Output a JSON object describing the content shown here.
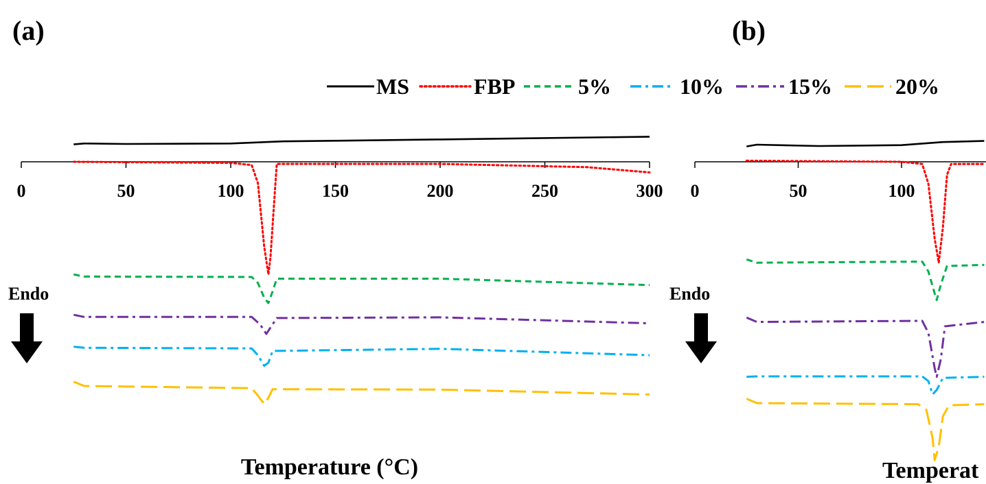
{
  "legend": {
    "entries": [
      {
        "key": "MS",
        "label": "MS"
      },
      {
        "key": "FBP",
        "label": "FBP"
      },
      {
        "key": "p5",
        "label": "5%"
      },
      {
        "key": "p10",
        "label": "10%"
      },
      {
        "key": "p15",
        "label": "15%"
      },
      {
        "key": "p20",
        "label": "20%"
      }
    ]
  },
  "chart_data": [
    {
      "type": "line",
      "panel_label": "(a)",
      "xlabel": "Temperature (°C)",
      "ylabel": "",
      "side_label": "Endo",
      "xlim": [
        0,
        300
      ],
      "x_ticks": [
        0,
        50,
        100,
        150,
        200,
        250,
        300
      ],
      "grid": false,
      "series": [
        {
          "name": "MS",
          "color": "#000000",
          "dash": "solid",
          "points": [
            [
              25,
              0.82
            ],
            [
              30,
              0.86
            ],
            [
              50,
              0.84
            ],
            [
              100,
              0.86
            ],
            [
              125,
              0.96
            ],
            [
              200,
              1.05
            ],
            [
              300,
              1.18
            ]
          ]
        },
        {
          "name": "FBP",
          "color": "#ff0000",
          "dash": "dotted",
          "points": [
            [
              25,
              0.0
            ],
            [
              100,
              -0.05
            ],
            [
              110,
              -0.15
            ],
            [
              113,
              -1.0
            ],
            [
              116,
              -4.0
            ],
            [
              118,
              -5.3
            ],
            [
              119,
              -4.5
            ],
            [
              121,
              -1.5
            ],
            [
              122,
              -0.1
            ],
            [
              200,
              -0.1
            ],
            [
              270,
              -0.25
            ],
            [
              300,
              -0.5
            ]
          ]
        },
        {
          "name": "5%",
          "color": "#00b050",
          "dash": "dashed",
          "points": [
            [
              25,
              -5.3
            ],
            [
              30,
              -5.4
            ],
            [
              110,
              -5.42
            ],
            [
              113,
              -5.7
            ],
            [
              116,
              -6.4
            ],
            [
              118,
              -6.65
            ],
            [
              120,
              -6.1
            ],
            [
              122,
              -5.5
            ],
            [
              200,
              -5.5
            ],
            [
              300,
              -5.8
            ]
          ]
        },
        {
          "name": "15%",
          "color": "#7030a0",
          "dash": "dashdot",
          "points": [
            [
              25,
              -7.2
            ],
            [
              30,
              -7.3
            ],
            [
              110,
              -7.3
            ],
            [
              114,
              -7.65
            ],
            [
              117,
              -8.1
            ],
            [
              119,
              -7.8
            ],
            [
              122,
              -7.35
            ],
            [
              200,
              -7.32
            ],
            [
              300,
              -7.6
            ]
          ]
        },
        {
          "name": "10%",
          "color": "#00b0f0",
          "dash": "dashdot",
          "points": [
            [
              25,
              -8.7
            ],
            [
              30,
              -8.75
            ],
            [
              110,
              -8.78
            ],
            [
              113,
              -9.1
            ],
            [
              116,
              -9.6
            ],
            [
              118,
              -9.45
            ],
            [
              120,
              -8.9
            ],
            [
              200,
              -8.8
            ],
            [
              300,
              -9.1
            ]
          ]
        },
        {
          "name": "20%",
          "color": "#ffc000",
          "dash": "longdash",
          "points": [
            [
              25,
              -10.35
            ],
            [
              30,
              -10.55
            ],
            [
              110,
              -10.65
            ],
            [
              113,
              -11.0
            ],
            [
              116,
              -11.4
            ],
            [
              118,
              -11.1
            ],
            [
              120,
              -10.7
            ],
            [
              200,
              -10.72
            ],
            [
              300,
              -10.95
            ]
          ]
        }
      ]
    },
    {
      "type": "line",
      "panel_label": "(b)",
      "xlabel": "Temperat",
      "ylabel": "",
      "side_label": "Endo",
      "xlim": [
        0,
        300
      ],
      "x_ticks": [
        0,
        50,
        100
      ],
      "grid": false,
      "series": [
        {
          "name": "MS",
          "color": "#000000",
          "dash": "solid",
          "points": [
            [
              25,
              0.7
            ],
            [
              30,
              0.78
            ],
            [
              60,
              0.72
            ],
            [
              100,
              0.76
            ],
            [
              120,
              0.9
            ],
            [
              140,
              0.95
            ]
          ]
        },
        {
          "name": "FBP",
          "color": "#ff0000",
          "dash": "dotted",
          "points": [
            [
              25,
              0.05
            ],
            [
              100,
              0.0
            ],
            [
              110,
              -0.1
            ],
            [
              113,
              -1.0
            ],
            [
              116,
              -3.5
            ],
            [
              118,
              -4.6
            ],
            [
              120,
              -3.0
            ],
            [
              122,
              -0.6
            ],
            [
              124,
              -0.1
            ],
            [
              140,
              -0.1
            ]
          ]
        },
        {
          "name": "5%",
          "color": "#00b050",
          "dash": "dashed",
          "points": [
            [
              25,
              -4.45
            ],
            [
              30,
              -4.6
            ],
            [
              110,
              -4.55
            ],
            [
              113,
              -5.0
            ],
            [
              116,
              -6.0
            ],
            [
              117,
              -6.3
            ],
            [
              119,
              -5.6
            ],
            [
              122,
              -4.75
            ],
            [
              140,
              -4.7
            ]
          ]
        },
        {
          "name": "15%",
          "color": "#7030a0",
          "dash": "dashdot",
          "points": [
            [
              25,
              -7.1
            ],
            [
              30,
              -7.3
            ],
            [
              110,
              -7.25
            ],
            [
              113,
              -7.8
            ],
            [
              116,
              -9.4
            ],
            [
              117,
              -9.8
            ],
            [
              119,
              -9.0
            ],
            [
              121,
              -7.5
            ],
            [
              140,
              -7.3
            ]
          ]
        },
        {
          "name": "10%",
          "color": "#00b0f0",
          "dash": "dashdot",
          "points": [
            [
              25,
              -9.8
            ],
            [
              30,
              -9.78
            ],
            [
              110,
              -9.78
            ],
            [
              113,
              -10.0
            ],
            [
              115,
              -10.6
            ],
            [
              117,
              -10.4
            ],
            [
              120,
              -9.85
            ],
            [
              140,
              -9.8
            ]
          ]
        },
        {
          "name": "20%",
          "color": "#ffc000",
          "dash": "longdash",
          "points": [
            [
              25,
              -10.8
            ],
            [
              30,
              -11.0
            ],
            [
              108,
              -11.05
            ],
            [
              112,
              -11.3
            ],
            [
              115,
              -12.6
            ],
            [
              116,
              -13.6
            ],
            [
              118,
              -13.0
            ],
            [
              120,
              -11.6
            ],
            [
              123,
              -11.1
            ],
            [
              140,
              -11.05
            ]
          ]
        }
      ]
    }
  ]
}
